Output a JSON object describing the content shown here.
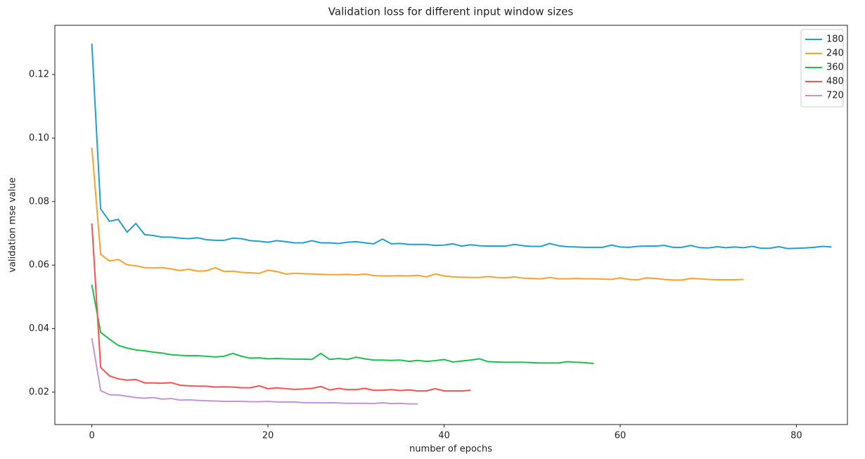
{
  "chart_data": {
    "type": "line",
    "title": "Validation loss for different input window sizes",
    "xlabel": "number of epochs",
    "ylabel": "validation mse value",
    "x": [
      0,
      1,
      2,
      3,
      4,
      5,
      6,
      7,
      8,
      9,
      10,
      11,
      12,
      13,
      14,
      15,
      16,
      17,
      18,
      19,
      20,
      21,
      22,
      23,
      24,
      25,
      26,
      27,
      28,
      29,
      30,
      31,
      32,
      33,
      34,
      35,
      36,
      37,
      38,
      39,
      40,
      41,
      42,
      43,
      44,
      45,
      46,
      47,
      48,
      49,
      50,
      51,
      52,
      53,
      54,
      55,
      56,
      57,
      58,
      59,
      60,
      61,
      62,
      63,
      64,
      65,
      66,
      67,
      68,
      69,
      70,
      71,
      72,
      73,
      74,
      75,
      76,
      77,
      78,
      79,
      80,
      81,
      82,
      83,
      84
    ],
    "series": [
      {
        "name": "180",
        "color": "#1f9fd3",
        "values": [
          0.1297,
          0.0777,
          0.0738,
          0.0744,
          0.0704,
          0.0731,
          0.0696,
          0.0693,
          0.0688,
          0.0688,
          0.0685,
          0.0683,
          0.0686,
          0.068,
          0.0678,
          0.0678,
          0.0685,
          0.0683,
          0.0677,
          0.0675,
          0.0672,
          0.0677,
          0.0674,
          0.067,
          0.067,
          0.0677,
          0.067,
          0.067,
          0.0668,
          0.0672,
          0.0674,
          0.067,
          0.0667,
          0.0682,
          0.0667,
          0.0668,
          0.0665,
          0.0665,
          0.0665,
          0.0662,
          0.0663,
          0.0667,
          0.066,
          0.0664,
          0.0661,
          0.066,
          0.066,
          0.066,
          0.0665,
          0.0661,
          0.0659,
          0.0659,
          0.0668,
          0.0661,
          0.0658,
          0.0657,
          0.0656,
          0.0656,
          0.0656,
          0.0663,
          0.0657,
          0.0656,
          0.0659,
          0.066,
          0.066,
          0.0662,
          0.0656,
          0.0656,
          0.0662,
          0.0655,
          0.0654,
          0.0658,
          0.0655,
          0.0657,
          0.0655,
          0.0659,
          0.0653,
          0.0653,
          0.0658,
          0.0652,
          0.0653,
          0.0654,
          0.0656,
          0.0659,
          0.0657
        ]
      },
      {
        "name": "240",
        "color": "#ff9f2f",
        "values": [
          0.097,
          0.0634,
          0.0613,
          0.0618,
          0.0601,
          0.0598,
          0.0592,
          0.0591,
          0.0592,
          0.0588,
          0.0583,
          0.0587,
          0.0581,
          0.0582,
          0.0592,
          0.058,
          0.0581,
          0.0577,
          0.0576,
          0.0574,
          0.0584,
          0.058,
          0.0572,
          0.0574,
          0.0573,
          0.0572,
          0.0571,
          0.057,
          0.057,
          0.0571,
          0.0569,
          0.0572,
          0.0567,
          0.0566,
          0.0566,
          0.0567,
          0.0566,
          0.0568,
          0.0563,
          0.0572,
          0.0566,
          0.0563,
          0.0562,
          0.0561,
          0.0561,
          0.0564,
          0.0561,
          0.056,
          0.0563,
          0.0559,
          0.0558,
          0.0557,
          0.0561,
          0.0557,
          0.0557,
          0.0558,
          0.0557,
          0.0557,
          0.0556,
          0.0555,
          0.056,
          0.0555,
          0.0554,
          0.056,
          0.0558,
          0.0555,
          0.0553,
          0.0553,
          0.0558,
          0.0557,
          0.0555,
          0.0554,
          0.0554,
          0.0554,
          0.0555,
          null,
          null,
          null,
          null,
          null,
          null,
          null,
          null,
          null,
          null
        ]
      },
      {
        "name": "360",
        "color": "#1cbf4c",
        "values": [
          0.0538,
          0.0388,
          0.0367,
          0.0347,
          0.0339,
          0.0333,
          0.033,
          0.0326,
          0.0323,
          0.0318,
          0.0316,
          0.0315,
          0.0315,
          0.0313,
          0.0311,
          0.0313,
          0.0322,
          0.0313,
          0.0307,
          0.0308,
          0.0305,
          0.0306,
          0.0305,
          0.0304,
          0.0304,
          0.0303,
          0.0322,
          0.0303,
          0.0306,
          0.0303,
          0.031,
          0.0305,
          0.0301,
          0.0301,
          0.03,
          0.0301,
          0.0297,
          0.03,
          0.0297,
          0.0299,
          0.0303,
          0.0295,
          0.0298,
          0.0301,
          0.0305,
          0.0296,
          0.0295,
          0.0294,
          0.0294,
          0.0294,
          0.0293,
          0.0292,
          0.0292,
          0.0292,
          0.0296,
          0.0294,
          0.0293,
          0.029,
          null,
          null,
          null,
          null,
          null,
          null,
          null,
          null,
          null,
          null,
          null,
          null,
          null,
          null,
          null,
          null,
          null,
          null,
          null,
          null,
          null,
          null,
          null,
          null,
          null,
          null,
          null
        ]
      },
      {
        "name": "480",
        "color": "#ff4f4f",
        "values": [
          0.0731,
          0.0278,
          0.0251,
          0.0242,
          0.0238,
          0.024,
          0.0229,
          0.0229,
          0.0228,
          0.023,
          0.0222,
          0.022,
          0.0219,
          0.0219,
          0.0216,
          0.0217,
          0.0216,
          0.0214,
          0.0214,
          0.022,
          0.0211,
          0.0214,
          0.0211,
          0.0209,
          0.021,
          0.0212,
          0.0218,
          0.0207,
          0.0212,
          0.0208,
          0.0208,
          0.0212,
          0.0206,
          0.0206,
          0.0208,
          0.0205,
          0.0207,
          0.0204,
          0.0204,
          0.0211,
          0.0204,
          0.0204,
          0.0204,
          0.0206,
          null,
          null,
          null,
          null,
          null,
          null,
          null,
          null,
          null,
          null,
          null,
          null,
          null,
          null,
          null,
          null,
          null,
          null,
          null,
          null,
          null,
          null,
          null,
          null,
          null,
          null,
          null,
          null,
          null,
          null,
          null,
          null,
          null,
          null,
          null,
          null,
          null,
          null,
          null,
          null,
          null
        ]
      },
      {
        "name": "720",
        "color": "#c494d8",
        "values": [
          0.037,
          0.0205,
          0.0192,
          0.0191,
          0.0187,
          0.0183,
          0.0181,
          0.0183,
          0.0178,
          0.018,
          0.0175,
          0.0176,
          0.0174,
          0.0173,
          0.0172,
          0.0171,
          0.0171,
          0.0171,
          0.017,
          0.017,
          0.0171,
          0.0169,
          0.0169,
          0.0169,
          0.0167,
          0.0167,
          0.0166,
          0.0167,
          0.0166,
          0.0165,
          0.0165,
          0.0165,
          0.0164,
          0.0167,
          0.0164,
          0.0165,
          0.0163,
          0.0163,
          null,
          null,
          null,
          null,
          null,
          null,
          null,
          null,
          null,
          null,
          null,
          null,
          null,
          null,
          null,
          null,
          null,
          null,
          null,
          null,
          null,
          null,
          null,
          null,
          null,
          null,
          null,
          null,
          null,
          null,
          null,
          null,
          null,
          null,
          null,
          null,
          null,
          null,
          null,
          null,
          null,
          null,
          null,
          null,
          null,
          null,
          null
        ]
      }
    ],
    "xlim": [
      -4.2,
      85.8
    ],
    "ylim": [
      0.0098,
      0.1355
    ],
    "xticks": [
      0,
      20,
      40,
      60,
      80
    ],
    "yticks": [
      0.02,
      0.04,
      0.06,
      0.08,
      {
        "value": 0.1,
        "label": "0.10"
      },
      0.12
    ],
    "legend": "upper right"
  }
}
